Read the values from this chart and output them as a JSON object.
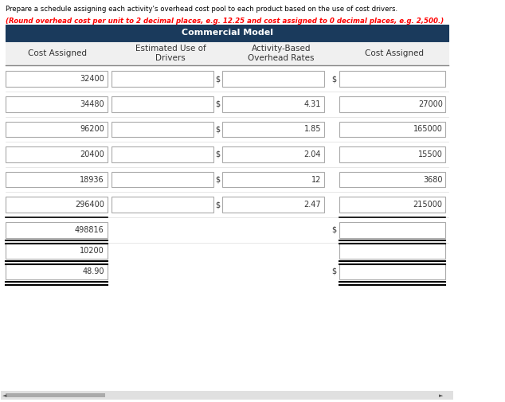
{
  "title_text": "Prepare a schedule assigning each activity's overhead cost pool to each product based on the use of cost drivers.",
  "title_italic_red": "(Round overhead cost per unit to 2 decimal places, e.g. 12.25 and cost assigned to 0 decimal places, e.g. 2,500.)",
  "header_bg": "#1a3a5c",
  "header_text": "Commercial Model",
  "header_text_color": "#ffffff",
  "col_headers": [
    "Cost Assigned",
    "Estimated Use of\nDrivers",
    "Activity-Based\nOverhead Rates",
    "Cost Assigned"
  ],
  "col_header_bg": "#f0f0f0",
  "rows": [
    {
      "left_val": "32400",
      "rate_val": "",
      "right_dollar": true,
      "right_val": ""
    },
    {
      "left_val": "34480",
      "rate_val": "4.31",
      "right_dollar": false,
      "right_val": "27000"
    },
    {
      "left_val": "96200",
      "rate_val": "1.85",
      "right_dollar": false,
      "right_val": "165000"
    },
    {
      "left_val": "20400",
      "rate_val": "2.04",
      "right_dollar": false,
      "right_val": "15500"
    },
    {
      "left_val": "18936",
      "rate_val": "12",
      "right_dollar": false,
      "right_val": "3680"
    },
    {
      "left_val": "296400",
      "rate_val": "2.47",
      "right_dollar": false,
      "right_val": "215000"
    }
  ],
  "bg_color": "#ffffff",
  "box_border": "#bbbbbb",
  "text_color": "#333333",
  "font_size": 7,
  "header_font_size": 7.5
}
